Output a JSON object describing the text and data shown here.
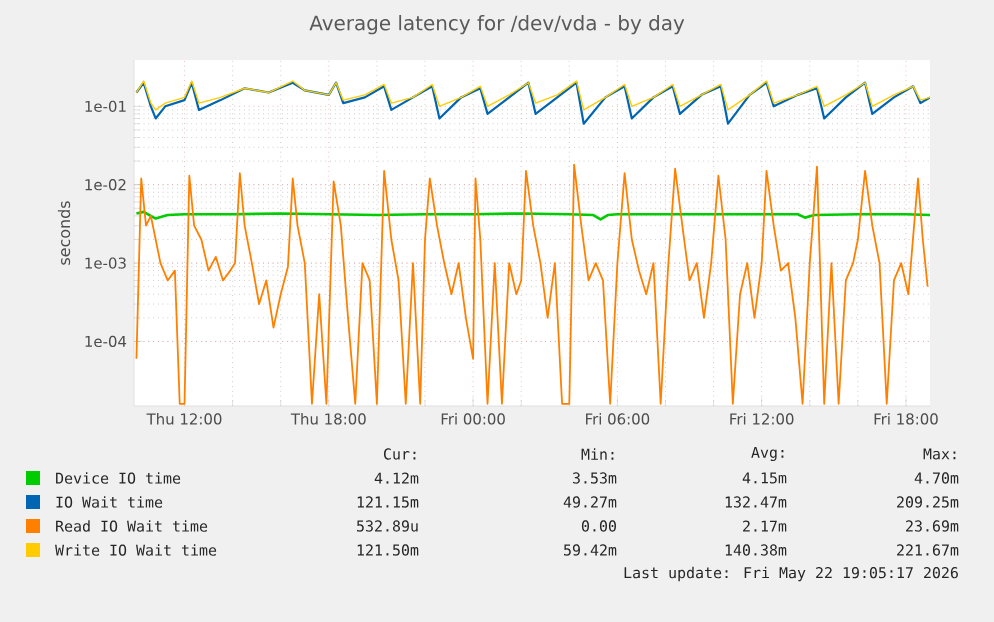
{
  "chart_data": {
    "type": "line",
    "title": "Average latency for /dev/vda - by day",
    "ylabel": "seconds",
    "log": "y",
    "grid": true,
    "legend": "bottom",
    "marker": "none",
    "line_style": "solid",
    "xlim": [
      "2026-05-21T09:54",
      "2026-05-22T19:00"
    ],
    "ylim": [
      1.5e-05,
      0.39
    ],
    "xticks": [
      {
        "value": "2026-05-21T12:00",
        "label": "Thu 12:00"
      },
      {
        "value": "2026-05-21T18:00",
        "label": "Thu 18:00"
      },
      {
        "value": "2026-05-22T00:00",
        "label": "Fri 00:00"
      },
      {
        "value": "2026-05-22T06:00",
        "label": "Fri 06:00"
      },
      {
        "value": "2026-05-22T12:00",
        "label": "Fri 12:00"
      },
      {
        "value": "2026-05-22T18:00",
        "label": "Fri 18:00"
      }
    ],
    "yticks": [
      {
        "value": 0.0001,
        "label": "1e-04"
      },
      {
        "value": 0.001,
        "label": "1e-03"
      },
      {
        "value": 0.01,
        "label": "1e-02"
      },
      {
        "value": 0.1,
        "label": "1e-01"
      }
    ],
    "series": [
      {
        "name": "Device IO time",
        "color": "#00cc00",
        "x": [
          "2026-05-21T10:00",
          "2026-05-21T10:18",
          "2026-05-21T10:48",
          "2026-05-21T11:18",
          "2026-05-21T12:00",
          "2026-05-21T14:00",
          "2026-05-21T16:00",
          "2026-05-21T18:00",
          "2026-05-21T20:00",
          "2026-05-21T22:00",
          "2026-05-22T00:00",
          "2026-05-22T02:00",
          "2026-05-22T04:00",
          "2026-05-22T05:00",
          "2026-05-22T05:18",
          "2026-05-22T05:36",
          "2026-05-22T06:00",
          "2026-05-22T08:00",
          "2026-05-22T10:00",
          "2026-05-22T12:00",
          "2026-05-22T13:30",
          "2026-05-22T13:48",
          "2026-05-22T14:12",
          "2026-05-22T16:00",
          "2026-05-22T18:00",
          "2026-05-22T19:00"
        ],
        "values": [
          0.0043,
          0.0045,
          0.0037,
          0.0041,
          0.0042,
          0.0042,
          0.0043,
          0.0042,
          0.0041,
          0.0042,
          0.0042,
          0.0043,
          0.0042,
          0.0041,
          0.0036,
          0.0041,
          0.0042,
          0.0042,
          0.0042,
          0.0042,
          0.0042,
          0.0038,
          0.0041,
          0.0042,
          0.0042,
          0.0041
        ]
      },
      {
        "name": "IO Wait time",
        "color": "#0066b3",
        "x": [
          "2026-05-21T10:00",
          "2026-05-21T10:18",
          "2026-05-21T10:36",
          "2026-05-21T10:48",
          "2026-05-21T11:12",
          "2026-05-21T12:00",
          "2026-05-21T12:18",
          "2026-05-21T12:36",
          "2026-05-21T13:30",
          "2026-05-21T14:30",
          "2026-05-21T15:30",
          "2026-05-21T16:30",
          "2026-05-21T17:00",
          "2026-05-21T18:00",
          "2026-05-21T18:18",
          "2026-05-21T18:36",
          "2026-05-21T19:30",
          "2026-05-21T20:18",
          "2026-05-21T20:36",
          "2026-05-21T21:30",
          "2026-05-21T22:18",
          "2026-05-21T22:36",
          "2026-05-21T23:30",
          "2026-05-22T00:18",
          "2026-05-22T00:36",
          "2026-05-22T01:30",
          "2026-05-22T02:18",
          "2026-05-22T02:36",
          "2026-05-22T03:30",
          "2026-05-22T04:18",
          "2026-05-22T04:36",
          "2026-05-22T05:30",
          "2026-05-22T06:18",
          "2026-05-22T06:36",
          "2026-05-22T07:30",
          "2026-05-22T08:18",
          "2026-05-22T08:36",
          "2026-05-22T09:30",
          "2026-05-22T10:18",
          "2026-05-22T10:36",
          "2026-05-22T11:30",
          "2026-05-22T12:12",
          "2026-05-22T12:30",
          "2026-05-22T13:30",
          "2026-05-22T14:18",
          "2026-05-22T14:36",
          "2026-05-22T15:30",
          "2026-05-22T16:18",
          "2026-05-22T16:36",
          "2026-05-22T17:30",
          "2026-05-22T18:18",
          "2026-05-22T18:36",
          "2026-05-22T19:00"
        ],
        "values": [
          0.15,
          0.2,
          0.1,
          0.07,
          0.1,
          0.12,
          0.2,
          0.09,
          0.12,
          0.17,
          0.15,
          0.2,
          0.16,
          0.14,
          0.2,
          0.11,
          0.13,
          0.18,
          0.09,
          0.13,
          0.18,
          0.07,
          0.13,
          0.17,
          0.08,
          0.13,
          0.2,
          0.08,
          0.13,
          0.2,
          0.06,
          0.13,
          0.18,
          0.07,
          0.13,
          0.18,
          0.08,
          0.14,
          0.18,
          0.06,
          0.14,
          0.2,
          0.1,
          0.14,
          0.17,
          0.07,
          0.13,
          0.2,
          0.08,
          0.13,
          0.18,
          0.11,
          0.13
        ]
      },
      {
        "name": "Read IO Wait time",
        "color": "#ff8000",
        "x": [
          "2026-05-21T10:00",
          "2026-05-21T10:12",
          "2026-05-21T10:24",
          "2026-05-21T10:36",
          "2026-05-21T10:48",
          "2026-05-21T11:00",
          "2026-05-21T11:18",
          "2026-05-21T11:36",
          "2026-05-21T11:48",
          "2026-05-21T12:00",
          "2026-05-21T12:12",
          "2026-05-21T12:24",
          "2026-05-21T12:42",
          "2026-05-21T13:00",
          "2026-05-21T13:18",
          "2026-05-21T13:36",
          "2026-05-21T13:54",
          "2026-05-21T14:06",
          "2026-05-21T14:18",
          "2026-05-21T14:30",
          "2026-05-21T14:48",
          "2026-05-21T15:06",
          "2026-05-21T15:24",
          "2026-05-21T15:42",
          "2026-05-21T16:00",
          "2026-05-21T16:18",
          "2026-05-21T16:30",
          "2026-05-21T16:42",
          "2026-05-21T17:00",
          "2026-05-21T17:18",
          "2026-05-21T17:36",
          "2026-05-21T17:54",
          "2026-05-21T18:12",
          "2026-05-21T18:30",
          "2026-05-21T18:48",
          "2026-05-21T19:06",
          "2026-05-21T19:24",
          "2026-05-21T19:42",
          "2026-05-21T20:00",
          "2026-05-21T20:18",
          "2026-05-21T20:36",
          "2026-05-21T20:54",
          "2026-05-21T21:12",
          "2026-05-21T21:30",
          "2026-05-21T21:48",
          "2026-05-21T22:00",
          "2026-05-21T22:12",
          "2026-05-21T22:30",
          "2026-05-21T22:48",
          "2026-05-21T23:06",
          "2026-05-21T23:24",
          "2026-05-21T23:42",
          "2026-05-22T00:00",
          "2026-05-22T00:06",
          "2026-05-22T00:18",
          "2026-05-22T00:36",
          "2026-05-22T00:54",
          "2026-05-22T01:12",
          "2026-05-22T01:30",
          "2026-05-22T01:48",
          "2026-05-22T02:00",
          "2026-05-22T02:12",
          "2026-05-22T02:30",
          "2026-05-22T02:48",
          "2026-05-22T03:06",
          "2026-05-22T03:24",
          "2026-05-22T03:42",
          "2026-05-22T04:00",
          "2026-05-22T04:12",
          "2026-05-22T04:30",
          "2026-05-22T04:48",
          "2026-05-22T05:06",
          "2026-05-22T05:24",
          "2026-05-22T05:42",
          "2026-05-22T06:00",
          "2026-05-22T06:18",
          "2026-05-22T06:36",
          "2026-05-22T06:54",
          "2026-05-22T07:12",
          "2026-05-22T07:30",
          "2026-05-22T07:48",
          "2026-05-22T08:06",
          "2026-05-22T08:24",
          "2026-05-22T08:42",
          "2026-05-22T09:00",
          "2026-05-22T09:18",
          "2026-05-22T09:36",
          "2026-05-22T09:54",
          "2026-05-22T10:12",
          "2026-05-22T10:30",
          "2026-05-22T10:48",
          "2026-05-22T11:06",
          "2026-05-22T11:24",
          "2026-05-22T11:42",
          "2026-05-22T12:00",
          "2026-05-22T12:12",
          "2026-05-22T12:30",
          "2026-05-22T12:48",
          "2026-05-22T13:06",
          "2026-05-22T13:24",
          "2026-05-22T13:42",
          "2026-05-22T14:00",
          "2026-05-22T14:18",
          "2026-05-22T14:36",
          "2026-05-22T14:54",
          "2026-05-22T15:12",
          "2026-05-22T15:30",
          "2026-05-22T15:48",
          "2026-05-22T16:00",
          "2026-05-22T16:18",
          "2026-05-22T16:36",
          "2026-05-22T16:54",
          "2026-05-22T17:12",
          "2026-05-22T17:30",
          "2026-05-22T17:48",
          "2026-05-22T18:06",
          "2026-05-22T18:30",
          "2026-05-22T18:42",
          "2026-05-22T18:54"
        ],
        "values": [
          6e-05,
          0.012,
          0.003,
          0.004,
          0.002,
          0.001,
          0.0006,
          0.0008,
          1.6e-05,
          1.6e-05,
          0.013,
          0.003,
          0.002,
          0.0008,
          0.0012,
          0.0006,
          0.0008,
          0.001,
          0.014,
          0.003,
          0.001,
          0.0003,
          0.0006,
          0.00015,
          0.0004,
          0.0009,
          0.012,
          0.003,
          0.001,
          1.6e-05,
          0.0004,
          1.6e-05,
          0.011,
          0.003,
          0.0002,
          1.6e-05,
          0.001,
          0.0006,
          1.6e-05,
          0.015,
          0.002,
          0.0006,
          1.6e-05,
          0.001,
          1.6e-05,
          0.002,
          0.012,
          0.003,
          0.001,
          0.0004,
          0.001,
          0.0002,
          6e-05,
          0.012,
          0.002,
          1.6e-05,
          0.001,
          1.6e-05,
          0.001,
          0.0004,
          0.0006,
          0.015,
          0.003,
          0.001,
          0.0002,
          0.001,
          1.6e-05,
          1.6e-05,
          0.018,
          0.003,
          0.0006,
          0.001,
          0.0006,
          1.6e-05,
          0.001,
          0.014,
          0.002,
          0.0008,
          0.0004,
          0.001,
          1.6e-05,
          0.0008,
          0.016,
          0.003,
          0.0006,
          0.001,
          0.0002,
          0.001,
          0.013,
          0.002,
          1.6e-05,
          0.0004,
          0.001,
          0.0002,
          0.001,
          0.015,
          0.003,
          0.0008,
          0.001,
          0.0002,
          1.6e-05,
          0.001,
          0.017,
          1.6e-05,
          0.001,
          1.6e-05,
          0.0006,
          0.001,
          0.002,
          0.015,
          0.003,
          0.001,
          1.6e-05,
          0.0006,
          0.001,
          0.0004,
          0.012,
          0.002,
          0.0005
        ]
      },
      {
        "name": "Write IO Wait time",
        "color": "#ffcc00",
        "x": [
          "2026-05-21T10:00",
          "2026-05-21T10:18",
          "2026-05-21T10:36",
          "2026-05-21T10:48",
          "2026-05-21T11:12",
          "2026-05-21T12:00",
          "2026-05-21T12:18",
          "2026-05-21T12:36",
          "2026-05-21T13:30",
          "2026-05-21T14:30",
          "2026-05-21T15:30",
          "2026-05-21T16:30",
          "2026-05-21T17:00",
          "2026-05-21T18:00",
          "2026-05-21T18:18",
          "2026-05-21T18:36",
          "2026-05-21T19:30",
          "2026-05-21T20:18",
          "2026-05-21T20:36",
          "2026-05-21T21:30",
          "2026-05-21T22:18",
          "2026-05-21T22:36",
          "2026-05-21T23:30",
          "2026-05-22T00:18",
          "2026-05-22T00:36",
          "2026-05-22T01:30",
          "2026-05-22T02:18",
          "2026-05-22T02:36",
          "2026-05-22T03:30",
          "2026-05-22T04:18",
          "2026-05-22T04:36",
          "2026-05-22T05:30",
          "2026-05-22T06:18",
          "2026-05-22T06:36",
          "2026-05-22T07:30",
          "2026-05-22T08:18",
          "2026-05-22T08:36",
          "2026-05-22T09:30",
          "2026-05-22T10:18",
          "2026-05-22T10:36",
          "2026-05-22T11:30",
          "2026-05-22T12:12",
          "2026-05-22T12:30",
          "2026-05-22T13:30",
          "2026-05-22T14:18",
          "2026-05-22T14:36",
          "2026-05-22T15:30",
          "2026-05-22T16:18",
          "2026-05-22T16:36",
          "2026-05-22T17:30",
          "2026-05-22T18:18",
          "2026-05-22T18:36",
          "2026-05-22T19:00"
        ],
        "values": [
          0.15,
          0.21,
          0.11,
          0.09,
          0.11,
          0.13,
          0.21,
          0.11,
          0.13,
          0.17,
          0.15,
          0.21,
          0.16,
          0.14,
          0.2,
          0.12,
          0.14,
          0.19,
          0.11,
          0.13,
          0.19,
          0.1,
          0.13,
          0.18,
          0.1,
          0.14,
          0.2,
          0.11,
          0.14,
          0.21,
          0.09,
          0.13,
          0.19,
          0.1,
          0.13,
          0.19,
          0.1,
          0.14,
          0.19,
          0.09,
          0.14,
          0.21,
          0.11,
          0.14,
          0.18,
          0.1,
          0.14,
          0.2,
          0.1,
          0.14,
          0.18,
          0.12,
          0.13
        ]
      }
    ],
    "annotations": [
      "Cur:",
      "Min:",
      "Avg:",
      "Max:",
      "4.12m",
      "3.53m",
      "4.15m",
      "4.70m",
      "121.15m",
      "49.27m",
      "132.47m",
      "209.25m",
      "532.89u",
      "0.00",
      "2.17m",
      "23.69m",
      "121.50m",
      "59.42m",
      "140.38m",
      "221.67m",
      "Last update: Fri May 22 19:05:17 2026"
    ]
  }
}
